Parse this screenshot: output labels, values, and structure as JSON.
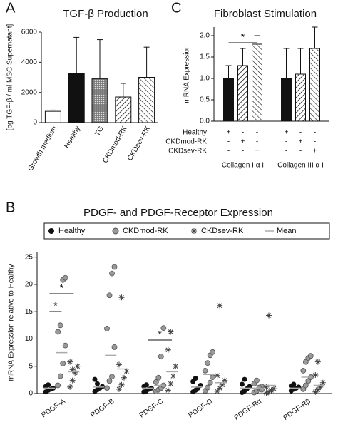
{
  "chart_data": [
    {
      "type": "bar",
      "panel": "A",
      "title": "TGF-β Production",
      "y_label": "[pg TGF-β / ml MSC Supernatant]",
      "categories": [
        "Growth medium",
        "Healthy",
        "TG",
        "CKDmod-RK",
        "CKDsev-RK"
      ],
      "values": [
        750,
        3250,
        2900,
        1700,
        3000
      ],
      "errors": [
        80,
        2400,
        2600,
        900,
        2000
      ],
      "fills": [
        "white",
        "black",
        "dots",
        "hatch",
        "hatch-reverse"
      ],
      "ylim": [
        0,
        6000
      ],
      "yticks": [
        0,
        2000,
        4000,
        6000
      ]
    },
    {
      "type": "grouped-bar",
      "panel": "C",
      "title": "Fibroblast Stimulation",
      "y_label": "mRNA Expression",
      "categories": [
        "Collagen I α I",
        "Collagen III α I"
      ],
      "series": [
        {
          "name": "Healthy",
          "fill": "black",
          "values": [
            1.0,
            1.0
          ],
          "errors": [
            0.3,
            0.7
          ]
        },
        {
          "name": "CKDmod-RK",
          "fill": "hatch",
          "values": [
            1.3,
            1.1
          ],
          "errors": [
            0.4,
            0.6
          ]
        },
        {
          "name": "CKDsev-RK",
          "fill": "hatch-reverse",
          "values": [
            1.8,
            1.7
          ],
          "errors": [
            0.2,
            0.5
          ]
        }
      ],
      "design": [
        [
          "+",
          "-",
          "-",
          "+",
          "-",
          "-"
        ],
        [
          "-",
          "+",
          "-",
          "-",
          "+",
          "-"
        ],
        [
          "-",
          "-",
          "+",
          "-",
          "-",
          "+"
        ]
      ],
      "annotations": [
        "*"
      ],
      "ylim": [
        0,
        2.2
      ],
      "yticks": [
        {
          "value": 0,
          "label": "0.0"
        },
        0.5,
        {
          "value": 1,
          "label": "1.0"
        },
        1.5,
        {
          "value": 2,
          "label": "2.0"
        }
      ]
    },
    {
      "type": "strip",
      "panel": "B",
      "title": "PDGF- and PDGF-Receptor Expression",
      "y_label": "mRNA Expression relative to Healthy",
      "categories": [
        "PDGF-A",
        "PDGF-B",
        "PDGF-C",
        "PDGF-D",
        "PDGF-Rα",
        "PDGF-Rβ"
      ],
      "series": [
        {
          "name": "Healthy",
          "color": "#111111",
          "marker": "circle",
          "values": [
            [
              0.3,
              0.6,
              0.8,
              1.0,
              1.3,
              1.6
            ],
            [
              0.4,
              0.7,
              1.0,
              1.3,
              2.6,
              1.8
            ],
            [
              0.3,
              0.5,
              0.8,
              1.0,
              1.3,
              1.6
            ],
            [
              0.3,
              0.6,
              1.0,
              1.5,
              2.2,
              2.8
            ],
            [
              0.2,
              0.5,
              0.9,
              1.3,
              1.7,
              2.6
            ],
            [
              0.5,
              0.8,
              1.0,
              1.2,
              1.4,
              1.7
            ]
          ]
        },
        {
          "name": "CKDmod-RK",
          "color": "#999999",
          "marker": "crossed-circle",
          "values": [
            [
              1.5,
              3.2,
              5.5,
              8.8,
              11.3,
              12.5,
              20.8,
              21.2
            ],
            [
              1.0,
              2.3,
              3.1,
              8.5,
              11.9,
              18.0,
              22.0,
              23.2
            ],
            [
              0.4,
              0.7,
              1.0,
              1.5,
              2.1,
              2.9,
              6.8,
              12.0
            ],
            [
              0.5,
              1.1,
              2.0,
              3.0,
              4.2,
              5.6,
              7.0,
              7.6
            ],
            [
              0.2,
              0.5,
              0.9,
              1.3,
              1.8,
              2.4,
              1.1,
              0.7
            ],
            [
              0.8,
              1.5,
              2.3,
              3.0,
              4.2,
              5.8,
              6.5,
              6.9
            ]
          ]
        },
        {
          "name": "CKDsev-RK",
          "color": "#444444",
          "marker": "asterisk",
          "values": [
            [
              1.2,
              2.4,
              3.8,
              5.0,
              5.8,
              4.4
            ],
            [
              0.8,
              1.6,
              2.9,
              4.1,
              5.3,
              17.6
            ],
            [
              0.6,
              1.8,
              3.2,
              5.0,
              8.0,
              11.3
            ],
            [
              0.4,
              1.0,
              1.6,
              2.4,
              3.3,
              16.1
            ],
            [
              0.1,
              0.3,
              0.6,
              0.9,
              1.2,
              14.3
            ],
            [
              0.3,
              0.7,
              1.2,
              2.0,
              3.4,
              5.8
            ]
          ]
        },
        {
          "name": "Mean",
          "color": "#aaaaaa",
          "marker": "line",
          "values": [
            [
              1.0,
              7.5,
              4.0
            ],
            [
              1.2,
              7.0,
              4.5
            ],
            [
              1.0,
              1.5,
              4.0
            ],
            [
              1.2,
              3.5,
              2.0
            ],
            [
              1.0,
              1.0,
              1.5
            ],
            [
              1.0,
              3.0,
              1.5
            ]
          ]
        }
      ],
      "annotations": [
        "*",
        "*",
        "*"
      ],
      "ylim": [
        0,
        26
      ],
      "yticks": [
        0,
        5,
        10,
        15,
        20,
        25
      ]
    }
  ]
}
